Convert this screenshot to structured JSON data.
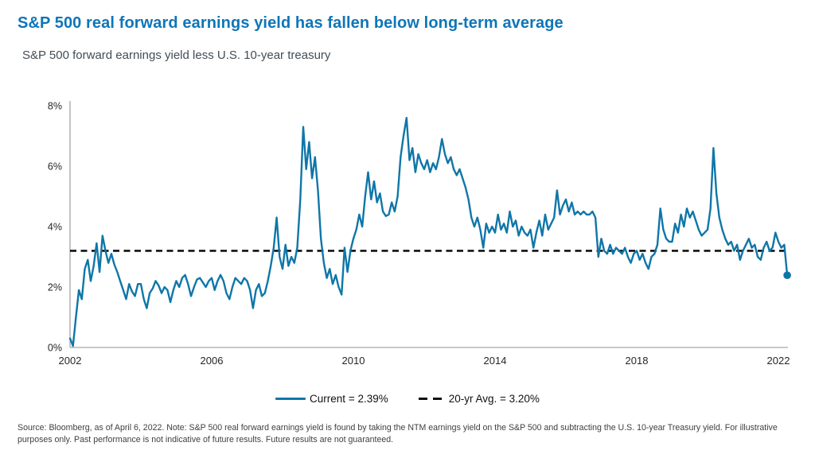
{
  "header": {
    "title": "S&P 500 real forward earnings yield has fallen below long-term average",
    "subtitle": "S&P 500 forward earnings yield less U.S. 10-year treasury"
  },
  "legend": {
    "current_label": "Current = 2.39%",
    "average_label": "20-yr Avg. = 3.20%"
  },
  "footnote": {
    "text": "Source: Bloomberg, as of April 6, 2022. Note: S&P 500 real forward earnings yield is found by taking the NTM earnings yield on the S&P 500 and subtracting the U.S. 10-year Treasury yield. For illustrative purposes only. Past performance is not indicative of future results. Future results are not guaranteed."
  },
  "colors": {
    "title": "#0E76B8",
    "series_line": "#0F76A8",
    "average_line": "#111111",
    "axis": "#A6A6A6",
    "tick_text": "#262626",
    "subtitle_text": "#414D57",
    "footnote_text": "#404040"
  },
  "chart_data": {
    "type": "line",
    "title": "S&P 500 forward earnings yield less U.S. 10-year treasury",
    "xlabel": "",
    "ylabel": "",
    "xlim": [
      2002,
      2022.35
    ],
    "ylim": [
      0,
      8
    ],
    "grid": false,
    "legend_position": "bottom",
    "x_ticks": [
      {
        "label": "2002",
        "value": 2002
      },
      {
        "label": "2006",
        "value": 2006
      },
      {
        "label": "2010",
        "value": 2010
      },
      {
        "label": "2014",
        "value": 2014
      },
      {
        "label": "2018",
        "value": 2018
      },
      {
        "label": "2022",
        "value": 2022
      }
    ],
    "y_ticks": [
      {
        "label": "0%",
        "value": 0
      },
      {
        "label": "2%",
        "value": 2
      },
      {
        "label": "4%",
        "value": 4
      },
      {
        "label": "6%",
        "value": 6
      },
      {
        "label": "8%",
        "value": 8
      }
    ],
    "average_line": {
      "name": "20-yr Avg.",
      "value": 3.2
    },
    "current": {
      "name": "Current",
      "value": 2.39
    },
    "series": [
      {
        "name": "Current",
        "start_year": 2002,
        "points_per_year": 12,
        "values": [
          0.3,
          0.05,
          1.0,
          1.9,
          1.6,
          2.6,
          2.9,
          2.2,
          2.7,
          3.45,
          2.5,
          3.7,
          3.2,
          2.8,
          3.1,
          2.75,
          2.5,
          2.2,
          1.9,
          1.6,
          2.1,
          1.85,
          1.7,
          2.1,
          2.1,
          1.6,
          1.3,
          1.8,
          1.95,
          2.2,
          2.05,
          1.8,
          2.0,
          1.9,
          1.5,
          1.9,
          2.2,
          2.0,
          2.3,
          2.4,
          2.1,
          1.7,
          2.0,
          2.25,
          2.3,
          2.15,
          2.0,
          2.2,
          2.3,
          1.9,
          2.2,
          2.4,
          2.2,
          1.8,
          1.6,
          2.0,
          2.3,
          2.2,
          2.1,
          2.3,
          2.2,
          1.9,
          1.3,
          1.9,
          2.1,
          1.7,
          1.8,
          2.2,
          2.7,
          3.3,
          4.3,
          3.0,
          2.6,
          3.4,
          2.7,
          3.0,
          2.8,
          3.3,
          4.9,
          7.3,
          5.9,
          6.8,
          5.6,
          6.3,
          5.2,
          3.6,
          2.8,
          2.3,
          2.6,
          2.1,
          2.4,
          2.0,
          1.75,
          3.3,
          2.5,
          3.2,
          3.6,
          3.9,
          4.4,
          4.0,
          5.0,
          5.8,
          4.9,
          5.5,
          4.8,
          5.1,
          4.5,
          4.35,
          4.4,
          4.8,
          4.5,
          5.0,
          6.3,
          7.0,
          7.6,
          6.2,
          6.6,
          5.8,
          6.4,
          6.1,
          5.9,
          6.2,
          5.8,
          6.1,
          5.9,
          6.3,
          6.9,
          6.4,
          6.1,
          6.3,
          5.9,
          5.7,
          5.9,
          5.6,
          5.3,
          4.9,
          4.3,
          4.0,
          4.3,
          3.9,
          3.3,
          4.1,
          3.8,
          4.0,
          3.8,
          4.4,
          3.9,
          4.1,
          3.8,
          4.5,
          4.0,
          4.2,
          3.7,
          4.0,
          3.8,
          3.7,
          3.9,
          3.3,
          3.8,
          4.2,
          3.7,
          4.4,
          3.9,
          4.1,
          4.3,
          5.2,
          4.4,
          4.7,
          4.9,
          4.5,
          4.8,
          4.4,
          4.5,
          4.4,
          4.5,
          4.4,
          4.4,
          4.5,
          4.3,
          3.0,
          3.6,
          3.2,
          3.1,
          3.4,
          3.1,
          3.3,
          3.2,
          3.1,
          3.3,
          3.0,
          2.8,
          3.1,
          3.2,
          2.9,
          3.1,
          2.8,
          2.6,
          3.0,
          3.1,
          3.4,
          4.6,
          3.9,
          3.6,
          3.5,
          3.5,
          4.1,
          3.8,
          4.4,
          4.0,
          4.6,
          4.3,
          4.5,
          4.2,
          3.9,
          3.7,
          3.8,
          3.9,
          4.6,
          6.6,
          5.1,
          4.3,
          3.9,
          3.6,
          3.4,
          3.5,
          3.2,
          3.4,
          2.9,
          3.2,
          3.4,
          3.6,
          3.3,
          3.4,
          3.0,
          2.9,
          3.3,
          3.5,
          3.2,
          3.3,
          3.8,
          3.5,
          3.3,
          3.4,
          2.39
        ]
      }
    ]
  }
}
